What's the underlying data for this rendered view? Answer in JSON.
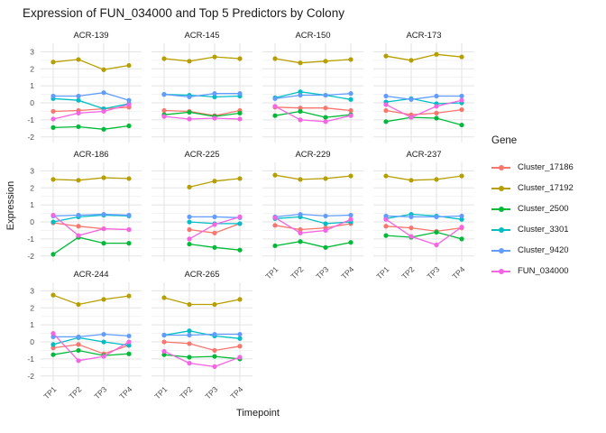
{
  "title": "Expression of FUN_034000 and Top 5 Predictors by Colony",
  "axes": {
    "x_label": "Timepoint",
    "y_label": "Expression",
    "x_ticks": [
      "TP1",
      "TP2",
      "TP3",
      "TP4"
    ],
    "y_ticks": [
      "3",
      "2",
      "1",
      "0",
      "-1",
      "-2"
    ]
  },
  "legend": {
    "title": "Gene",
    "position": "right",
    "items": [
      {
        "label": "Cluster_17186",
        "color": "#F8766D"
      },
      {
        "label": "Cluster_17192",
        "color": "#B79F00"
      },
      {
        "label": "Cluster_2500",
        "color": "#00BA38"
      },
      {
        "label": "Cluster_3301",
        "color": "#00BFC4"
      },
      {
        "label": "Cluster_9420",
        "color": "#619CFF"
      },
      {
        "label": "FUN_034000",
        "color": "#F564E3"
      }
    ]
  },
  "chart_data": {
    "type": "line",
    "title": "Expression of FUN_034000 and Top 5 Predictors by Colony",
    "xlabel": "Timepoint",
    "ylabel": "Expression",
    "x": [
      "TP1",
      "TP2",
      "TP3",
      "TP4"
    ],
    "ylim": [
      -2,
      3
    ],
    "grid": true,
    "legend_position": "right",
    "facets": [
      {
        "name": "ACR-139",
        "series": [
          {
            "name": "Cluster_17186",
            "values": [
              -0.5,
              -0.45,
              -0.35,
              -0.25
            ]
          },
          {
            "name": "Cluster_17192",
            "values": [
              2.4,
              2.55,
              1.95,
              2.2
            ]
          },
          {
            "name": "Cluster_2500",
            "values": [
              -1.45,
              -1.4,
              -1.55,
              -1.35
            ]
          },
          {
            "name": "Cluster_3301",
            "values": [
              0.25,
              0.15,
              -0.35,
              -0.05
            ]
          },
          {
            "name": "Cluster_9420",
            "values": [
              0.4,
              0.4,
              0.6,
              0.15
            ]
          },
          {
            "name": "FUN_034000",
            "values": [
              -0.95,
              -0.6,
              -0.5,
              -0.1
            ]
          }
        ]
      },
      {
        "name": "ACR-145",
        "series": [
          {
            "name": "Cluster_17186",
            "values": [
              -0.45,
              -0.5,
              -0.75,
              -0.45
            ]
          },
          {
            "name": "Cluster_17192",
            "values": [
              2.6,
              2.45,
              2.7,
              2.6
            ]
          },
          {
            "name": "Cluster_2500",
            "values": [
              -0.7,
              -0.55,
              -0.8,
              -0.6
            ]
          },
          {
            "name": "Cluster_3301",
            "values": [
              0.5,
              0.45,
              0.35,
              0.4
            ]
          },
          {
            "name": "Cluster_9420",
            "values": [
              0.5,
              0.35,
              0.55,
              0.55
            ]
          },
          {
            "name": "FUN_034000",
            "values": [
              -0.8,
              -0.95,
              -0.9,
              -0.95
            ]
          }
        ]
      },
      {
        "name": "ACR-150",
        "series": [
          {
            "name": "Cluster_17186",
            "values": [
              -0.25,
              -0.3,
              -0.3,
              -0.45
            ]
          },
          {
            "name": "Cluster_17192",
            "values": [
              2.6,
              2.35,
              2.45,
              2.55
            ]
          },
          {
            "name": "Cluster_2500",
            "values": [
              -0.75,
              -0.5,
              -0.85,
              -0.7
            ]
          },
          {
            "name": "Cluster_3301",
            "values": [
              0.3,
              0.65,
              0.45,
              0.2
            ]
          },
          {
            "name": "Cluster_9420",
            "values": [
              0.25,
              0.45,
              0.45,
              0.55
            ]
          },
          {
            "name": "FUN_034000",
            "values": [
              -0.2,
              -1.0,
              -1.1,
              -0.75
            ]
          }
        ]
      },
      {
        "name": "ACR-173",
        "series": [
          {
            "name": "Cluster_17186",
            "values": [
              -0.45,
              -0.7,
              -0.6,
              -0.4
            ]
          },
          {
            "name": "Cluster_17192",
            "values": [
              2.75,
              2.5,
              2.85,
              2.7
            ]
          },
          {
            "name": "Cluster_2500",
            "values": [
              -1.1,
              -0.85,
              -0.9,
              -1.3
            ]
          },
          {
            "name": "Cluster_3301",
            "values": [
              0.05,
              0.25,
              -0.05,
              0.0
            ]
          },
          {
            "name": "Cluster_9420",
            "values": [
              0.4,
              0.2,
              0.4,
              0.4
            ]
          },
          {
            "name": "FUN_034000",
            "values": [
              -0.1,
              -0.85,
              -0.2,
              0.15
            ]
          }
        ]
      },
      {
        "name": "ACR-186",
        "series": [
          {
            "name": "Cluster_17186",
            "values": [
              -0.05,
              -0.25,
              -0.4,
              -0.45
            ]
          },
          {
            "name": "Cluster_17192",
            "values": [
              2.5,
              2.45,
              2.6,
              2.55
            ]
          },
          {
            "name": "Cluster_2500",
            "values": [
              -1.9,
              -0.9,
              -1.25,
              -1.25
            ]
          },
          {
            "name": "Cluster_3301",
            "values": [
              0.0,
              0.3,
              0.4,
              0.35
            ]
          },
          {
            "name": "Cluster_9420",
            "values": [
              0.35,
              0.4,
              0.45,
              0.4
            ]
          },
          {
            "name": "FUN_034000",
            "values": [
              0.4,
              -0.8,
              -0.4,
              -0.45
            ]
          }
        ]
      },
      {
        "name": "ACR-225",
        "series": [
          {
            "name": "Cluster_17186",
            "values": [
              null,
              -0.45,
              -0.65,
              -0.1
            ]
          },
          {
            "name": "Cluster_17192",
            "values": [
              null,
              2.05,
              2.4,
              2.55
            ]
          },
          {
            "name": "Cluster_2500",
            "values": [
              null,
              -1.3,
              -1.5,
              -1.65
            ]
          },
          {
            "name": "Cluster_3301",
            "values": [
              null,
              0.0,
              -0.1,
              -0.1
            ]
          },
          {
            "name": "Cluster_9420",
            "values": [
              null,
              0.3,
              0.3,
              0.25
            ]
          },
          {
            "name": "FUN_034000",
            "values": [
              null,
              -1.0,
              -0.15,
              0.3
            ]
          }
        ]
      },
      {
        "name": "ACR-229",
        "series": [
          {
            "name": "Cluster_17186",
            "values": [
              -0.2,
              -0.45,
              -0.35,
              -0.1
            ]
          },
          {
            "name": "Cluster_17192",
            "values": [
              2.75,
              2.5,
              2.55,
              2.7
            ]
          },
          {
            "name": "Cluster_2500",
            "values": [
              -1.4,
              -1.15,
              -1.5,
              -1.2
            ]
          },
          {
            "name": "Cluster_3301",
            "values": [
              0.2,
              0.3,
              -0.1,
              0.0
            ]
          },
          {
            "name": "Cluster_9420",
            "values": [
              0.3,
              0.45,
              0.35,
              0.4
            ]
          },
          {
            "name": "FUN_034000",
            "values": [
              0.25,
              -0.65,
              -0.5,
              0.15
            ]
          }
        ]
      },
      {
        "name": "ACR-237",
        "series": [
          {
            "name": "Cluster_17186",
            "values": [
              -0.25,
              -0.35,
              -0.55,
              -0.35
            ]
          },
          {
            "name": "Cluster_17192",
            "values": [
              2.7,
              2.45,
              2.5,
              2.7
            ]
          },
          {
            "name": "Cluster_2500",
            "values": [
              -0.8,
              -0.9,
              -0.6,
              -1.0
            ]
          },
          {
            "name": "Cluster_3301",
            "values": [
              0.2,
              0.45,
              0.35,
              0.15
            ]
          },
          {
            "name": "Cluster_9420",
            "values": [
              0.35,
              0.3,
              0.3,
              0.35
            ]
          },
          {
            "name": "FUN_034000",
            "values": [
              0.15,
              -0.85,
              -1.35,
              -0.3
            ]
          }
        ]
      },
      {
        "name": "ACR-244",
        "series": [
          {
            "name": "Cluster_17186",
            "values": [
              -0.35,
              -0.15,
              -0.7,
              -0.2
            ]
          },
          {
            "name": "Cluster_17192",
            "values": [
              2.75,
              2.2,
              2.5,
              2.7
            ]
          },
          {
            "name": "Cluster_2500",
            "values": [
              -0.75,
              -0.5,
              -0.8,
              -0.7
            ]
          },
          {
            "name": "Cluster_3301",
            "values": [
              -0.15,
              0.25,
              0.0,
              -0.2
            ]
          },
          {
            "name": "Cluster_9420",
            "values": [
              0.3,
              0.3,
              0.45,
              0.35
            ]
          },
          {
            "name": "FUN_034000",
            "values": [
              0.5,
              -1.1,
              -0.85,
              0.0
            ]
          }
        ]
      },
      {
        "name": "ACR-265",
        "series": [
          {
            "name": "Cluster_17186",
            "values": [
              0.0,
              -0.1,
              -0.5,
              -0.25
            ]
          },
          {
            "name": "Cluster_17192",
            "values": [
              2.6,
              2.2,
              2.2,
              2.5
            ]
          },
          {
            "name": "Cluster_2500",
            "values": [
              -0.75,
              -0.9,
              -0.85,
              -1.0
            ]
          },
          {
            "name": "Cluster_3301",
            "values": [
              0.4,
              0.65,
              0.35,
              0.2
            ]
          },
          {
            "name": "Cluster_9420",
            "values": [
              0.4,
              0.4,
              0.45,
              0.45
            ]
          },
          {
            "name": "FUN_034000",
            "values": [
              -0.55,
              -1.25,
              -1.45,
              -0.9
            ]
          }
        ]
      }
    ]
  }
}
